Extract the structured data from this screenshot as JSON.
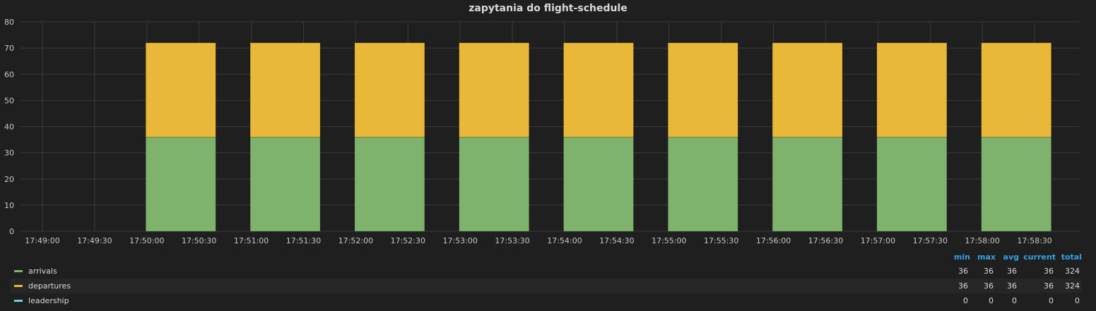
{
  "panel": {
    "title": "zapytania do flight-schedule"
  },
  "colors": {
    "background": "#1f1f20",
    "grid": "#3a3a3c",
    "arrivals": "#7eb26d",
    "departures": "#eab839",
    "leadership": "#6ed0e0",
    "stat_header": "#33a2e5"
  },
  "chart_data": {
    "type": "bar",
    "stacked": true,
    "title": "zapytania do flight-schedule",
    "xlabel": "",
    "ylabel": "",
    "ylim": [
      0,
      80
    ],
    "y_ticks": [
      0,
      10,
      20,
      30,
      40,
      50,
      60,
      70,
      80
    ],
    "x_ticks": [
      "17:49:00",
      "17:49:30",
      "17:50:00",
      "17:50:30",
      "17:51:00",
      "17:51:30",
      "17:52:00",
      "17:52:30",
      "17:53:00",
      "17:53:30",
      "17:54:00",
      "17:54:30",
      "17:55:00",
      "17:55:30",
      "17:56:00",
      "17:56:30",
      "17:57:00",
      "17:57:30",
      "17:58:00",
      "17:58:30"
    ],
    "categories": [
      "17:50:00",
      "17:51:00",
      "17:52:00",
      "17:53:00",
      "17:54:00",
      "17:55:00",
      "17:56:00",
      "17:57:00",
      "17:58:00"
    ],
    "series": [
      {
        "name": "arrivals",
        "values": [
          36,
          36,
          36,
          36,
          36,
          36,
          36,
          36,
          36
        ]
      },
      {
        "name": "departures",
        "values": [
          36,
          36,
          36,
          36,
          36,
          36,
          36,
          36,
          36
        ]
      },
      {
        "name": "leadership",
        "values": [
          0,
          0,
          0,
          0,
          0,
          0,
          0,
          0,
          0
        ]
      }
    ],
    "grid": true,
    "legend": "bottom"
  },
  "legend": {
    "headers": {
      "min": "min",
      "max": "max",
      "avg": "avg",
      "current": "current",
      "total": "total"
    },
    "rows": [
      {
        "name": "arrivals",
        "min": "36",
        "max": "36",
        "avg": "36",
        "current": "36",
        "total": "324"
      },
      {
        "name": "departures",
        "min": "36",
        "max": "36",
        "avg": "36",
        "current": "36",
        "total": "324"
      },
      {
        "name": "leadership",
        "min": "0",
        "max": "0",
        "avg": "0",
        "current": "0",
        "total": "0"
      }
    ]
  }
}
